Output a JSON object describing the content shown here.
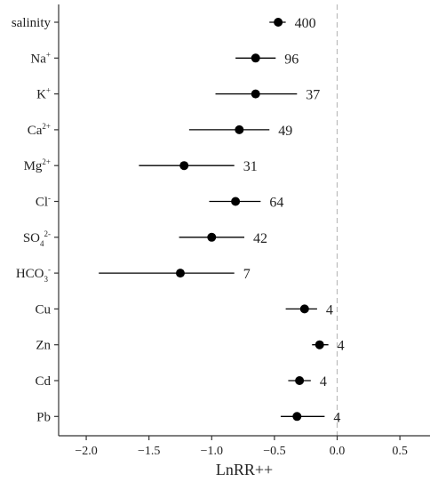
{
  "chart_data": {
    "type": "forest",
    "xlabel": "LnRR++",
    "x_ticks": [
      -2.0,
      -1.5,
      -1.0,
      -0.5,
      0.0,
      0.5
    ],
    "x_tick_labels": [
      "−2.0",
      "−1.5",
      "−1.0",
      "−0.5",
      "0.0",
      "0.5"
    ],
    "xlim": [
      -2.22,
      0.74
    ],
    "reference_line": 0.0,
    "grid": false,
    "rows": [
      {
        "base": "salinity",
        "sup": "",
        "sub": "",
        "sup2": "",
        "label": "salinity",
        "estimate": -0.47,
        "ci_low": -0.54,
        "ci_high": -0.41,
        "n": "400"
      },
      {
        "base": "Na",
        "sup": "+",
        "sub": "",
        "sup2": "",
        "label": "Na+",
        "estimate": -0.65,
        "ci_low": -0.81,
        "ci_high": -0.49,
        "n": "96"
      },
      {
        "base": "K",
        "sup": "+",
        "sub": "",
        "sup2": "",
        "label": "K+",
        "estimate": -0.65,
        "ci_low": -0.97,
        "ci_high": -0.32,
        "n": "37"
      },
      {
        "base": "Ca",
        "sup": "2+",
        "sub": "",
        "sup2": "",
        "label": "Ca2+",
        "estimate": -0.78,
        "ci_low": -1.18,
        "ci_high": -0.54,
        "n": "49"
      },
      {
        "base": "Mg",
        "sup": "2+",
        "sub": "",
        "sup2": "",
        "label": "Mg2+",
        "estimate": -1.22,
        "ci_low": -1.58,
        "ci_high": -0.82,
        "n": "31"
      },
      {
        "base": "Cl",
        "sup": "-",
        "sub": "",
        "sup2": "",
        "label": "Cl-",
        "estimate": -0.81,
        "ci_low": -1.02,
        "ci_high": -0.61,
        "n": "64"
      },
      {
        "base": "SO",
        "sup": "",
        "sub": "4",
        "sup2": "2-",
        "label": "SO42-",
        "estimate": -1.0,
        "ci_low": -1.26,
        "ci_high": -0.74,
        "n": "42"
      },
      {
        "base": "HCO",
        "sup": "",
        "sub": "3",
        "sup2": "-",
        "label": "HCO3-",
        "estimate": -1.25,
        "ci_low": -1.9,
        "ci_high": -0.82,
        "n": "7"
      },
      {
        "base": "Cu",
        "sup": "",
        "sub": "",
        "sup2": "",
        "label": "Cu",
        "estimate": -0.26,
        "ci_low": -0.41,
        "ci_high": -0.16,
        "n": "4"
      },
      {
        "base": "Zn",
        "sup": "",
        "sub": "",
        "sup2": "",
        "label": "Zn",
        "estimate": -0.14,
        "ci_low": -0.2,
        "ci_high": -0.07,
        "n": "4"
      },
      {
        "base": "Cd",
        "sup": "",
        "sub": "",
        "sup2": "",
        "label": "Cd",
        "estimate": -0.3,
        "ci_low": -0.39,
        "ci_high": -0.21,
        "n": "4"
      },
      {
        "base": "Pb",
        "sup": "",
        "sub": "",
        "sup2": "",
        "label": "Pb",
        "estimate": -0.32,
        "ci_low": -0.45,
        "ci_high": -0.1,
        "n": "4"
      }
    ],
    "colors": {
      "point": "#000000",
      "line": "#000000",
      "axis": "#333333",
      "reference": "#bbbbbb"
    }
  }
}
